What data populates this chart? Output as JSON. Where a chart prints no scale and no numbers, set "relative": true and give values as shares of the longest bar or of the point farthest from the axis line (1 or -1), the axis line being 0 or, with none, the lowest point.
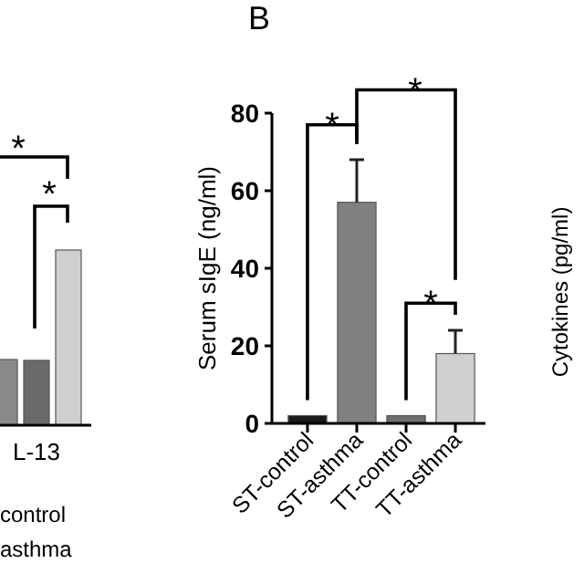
{
  "chart_data": [
    {
      "type": "bar",
      "relative": true,
      "categories": [
        "L-13"
      ],
      "series": [
        {
          "color": "#8a8a8a",
          "values": [
            0.375
          ]
        },
        {
          "color": "#6a6a6a",
          "values": [
            0.37
          ]
        },
        {
          "color": "#cfcfcf",
          "values": [
            1
          ]
        }
      ],
      "annotations": [
        "*",
        "*",
        "control",
        "asthma"
      ]
    },
    {
      "type": "bar",
      "title": "B",
      "ylabel": "Serum sIgE (ng/ml)",
      "categories": [
        "ST-control",
        "ST-asthma",
        "TT-control",
        "TT-asthma"
      ],
      "values": [
        2,
        57,
        2,
        18
      ],
      "errors": [
        null,
        11,
        null,
        6
      ],
      "colors": [
        "#1a1a1a",
        "#808080",
        "#6e6e6e",
        "#d0d0d0"
      ],
      "ylim": [
        0,
        80
      ],
      "yticks": [
        0,
        20,
        40,
        60,
        80
      ],
      "annotations": [
        "*",
        "*",
        "*"
      ]
    },
    {
      "type": "other",
      "ylabel": "Cytokines (pg/ml)"
    }
  ]
}
